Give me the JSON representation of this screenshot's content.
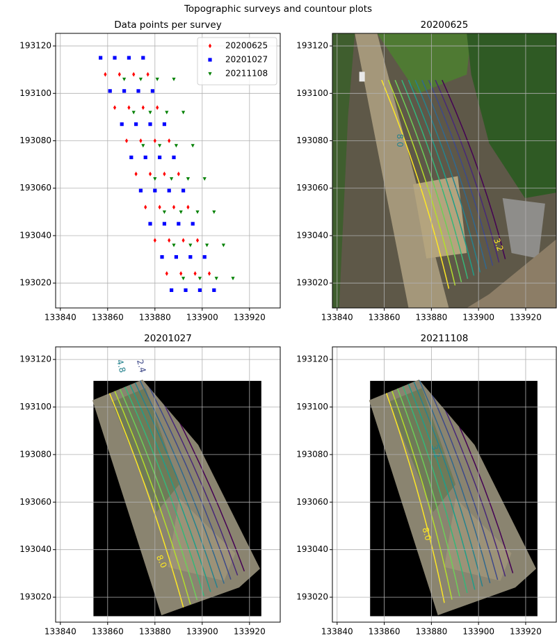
{
  "title": "Topographic surveys and countour plots",
  "chart_data": [
    {
      "type": "scatter",
      "title": "Data points per survey",
      "xlim": [
        133838,
        133933
      ],
      "ylim": [
        193009.5,
        193125.3
      ],
      "xticks": [
        133840,
        133860,
        133880,
        133900,
        133920
      ],
      "yticks": [
        193020,
        193040,
        193060,
        193080,
        193100,
        193120
      ],
      "grid": true,
      "legend": "upper right",
      "series": [
        {
          "name": "20200625",
          "color": "#ff0000",
          "marker": "diamond",
          "x": [
            133859,
            133865,
            133871,
            133877,
            133863,
            133869,
            133875,
            133881,
            133868,
            133874,
            133880,
            133886,
            133872,
            133878,
            133884,
            133890,
            133876,
            133882,
            133888,
            133894,
            133880,
            133886,
            133892,
            133898,
            133885,
            133891,
            133897,
            133903
          ],
          "values": [
            193108,
            193108,
            193108,
            193108,
            193094,
            193094,
            193094,
            193094,
            193080,
            193080,
            193080,
            193080,
            193066,
            193066,
            193066,
            193066,
            193052,
            193052,
            193052,
            193052,
            193038,
            193038,
            193038,
            193038,
            193024,
            193024,
            193024,
            193024
          ]
        },
        {
          "name": "20201027",
          "color": "#0000ff",
          "marker": "square",
          "x": [
            133857,
            133863,
            133869,
            133875,
            133861,
            133867,
            133873,
            133879,
            133866,
            133872,
            133878,
            133884,
            133870,
            133876,
            133882,
            133888,
            133874,
            133880,
            133886,
            133892,
            133878,
            133884,
            133890,
            133896,
            133883,
            133889,
            133895,
            133901,
            133887,
            133893,
            133899,
            133905
          ],
          "values": [
            193115,
            193115,
            193115,
            193115,
            193101,
            193101,
            193101,
            193101,
            193087,
            193087,
            193087,
            193087,
            193073,
            193073,
            193073,
            193073,
            193059,
            193059,
            193059,
            193059,
            193045,
            193045,
            193045,
            193045,
            193031,
            193031,
            193031,
            193031,
            193017,
            193017,
            193017,
            193017
          ]
        },
        {
          "name": "20211108",
          "color": "#008000",
          "marker": "triangle_down",
          "x": [
            133867,
            133874,
            133881,
            133888,
            133871,
            133878,
            133885,
            133892,
            133875,
            133882,
            133889,
            133896,
            133880,
            133887,
            133894,
            133901,
            133884,
            133891,
            133898,
            133905,
            133888,
            133895,
            133902,
            133909,
            133892,
            133899,
            133906,
            133913
          ],
          "values": [
            193106,
            193106,
            193106,
            193106,
            193092,
            193092,
            193092,
            193092,
            193078,
            193078,
            193078,
            193078,
            193064,
            193064,
            193064,
            193064,
            193050,
            193050,
            193050,
            193050,
            193036,
            193036,
            193036,
            193036,
            193022,
            193022,
            193022,
            193022
          ]
        }
      ]
    },
    {
      "type": "contour",
      "title": "20200625",
      "xlim": [
        133838,
        133933
      ],
      "ylim": [
        193009.5,
        193125.3
      ],
      "xticks": [
        133840,
        133860,
        133880,
        133900,
        133920
      ],
      "yticks": [
        193020,
        193040,
        193060,
        193080,
        193100,
        193120
      ],
      "grid": true,
      "contour_labels": [
        "8.0",
        "3.2"
      ]
    },
    {
      "type": "contour",
      "title": "20201027",
      "xlim": [
        133838,
        133933
      ],
      "ylim": [
        193009.5,
        193125.3
      ],
      "xticks": [
        133840,
        133860,
        133880,
        133900,
        133920
      ],
      "yticks": [
        193020,
        193040,
        193060,
        193080,
        193100,
        193120
      ],
      "grid": true,
      "extent": [
        133854,
        133925,
        193012,
        193111
      ],
      "contour_labels": [
        "4.8",
        "2.4",
        "8.0"
      ]
    },
    {
      "type": "contour",
      "title": "20211108",
      "xlim": [
        133838,
        133933
      ],
      "ylim": [
        193009.5,
        193125.3
      ],
      "xticks": [
        133840,
        133860,
        133880,
        133900,
        133920
      ],
      "yticks": [
        193020,
        193040,
        193060,
        193080,
        193100,
        193120
      ],
      "grid": true,
      "extent": [
        133854,
        133925,
        193012,
        193111
      ],
      "contour_labels": [
        "3.2",
        "8.0"
      ]
    }
  ]
}
